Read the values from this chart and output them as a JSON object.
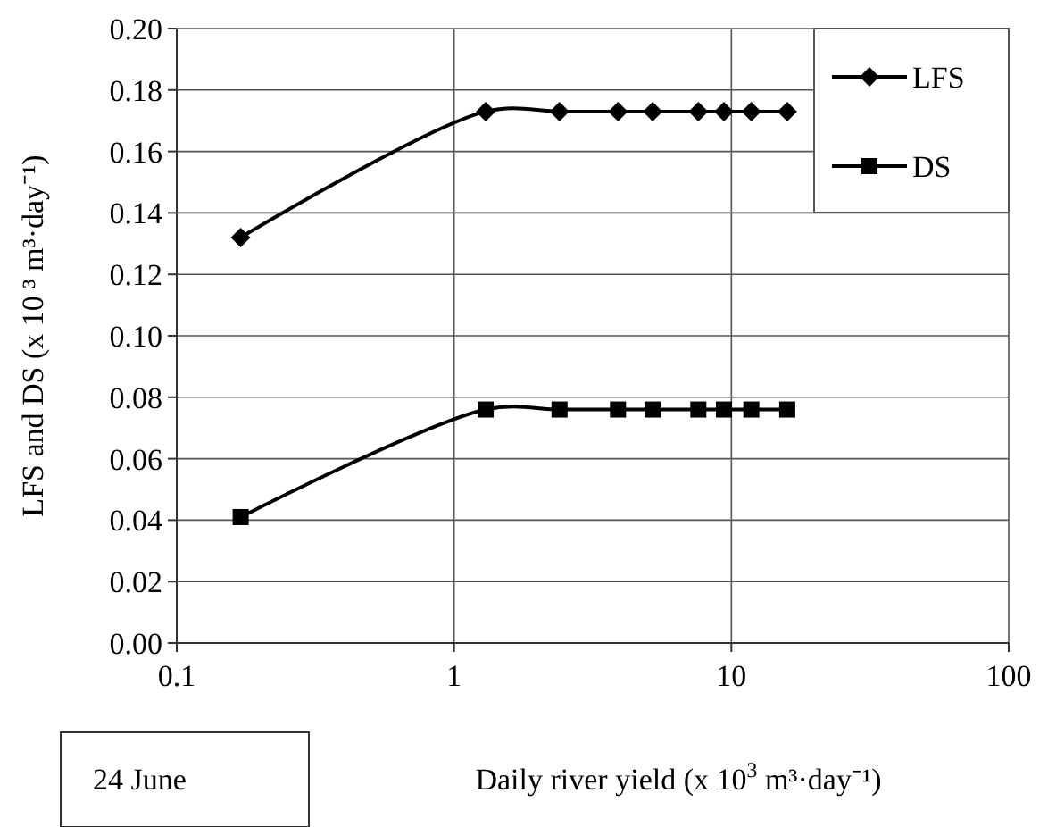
{
  "chart_data": {
    "type": "line",
    "xlabel": "Daily river yield  (x 10$^{3}$ m³·day⁻¹)",
    "ylabel": "LFS and DS (x 10 ³ m³·day⁻¹)",
    "annotations": [
      "24 June"
    ],
    "x": [
      0.17,
      1.3,
      2.4,
      3.9,
      5.2,
      7.6,
      9.4,
      11.8,
      15.9
    ],
    "series": [
      {
        "name": "LFS",
        "color": "#000000",
        "marker": "diamond",
        "values": [
          0.132,
          0.173,
          0.173,
          0.173,
          0.173,
          0.173,
          0.173,
          0.173,
          0.173
        ]
      },
      {
        "name": "DS",
        "color": "#000000",
        "marker": "square",
        "values": [
          0.041,
          0.076,
          0.076,
          0.076,
          0.076,
          0.076,
          0.076,
          0.076,
          0.076
        ]
      }
    ],
    "log": "x",
    "xlim": [
      0.1,
      100
    ],
    "xticks": [
      0.1,
      1,
      10,
      100
    ],
    "ylim": [
      0,
      0.2
    ],
    "yticks": [
      {
        "value": 0,
        "label": "0.00"
      },
      {
        "value": 0.02,
        "label": "0.02"
      },
      {
        "value": 0.04,
        "label": "0.04"
      },
      {
        "value": 0.06,
        "label": "0.06"
      },
      {
        "value": 0.08,
        "label": "0.08"
      },
      {
        "value": 0.1,
        "label": "0.10"
      },
      {
        "value": 0.12,
        "label": "0.12"
      },
      {
        "value": 0.14,
        "label": "0.14"
      },
      {
        "value": 0.16,
        "label": "0.16"
      },
      {
        "value": 0.18,
        "label": "0.18"
      },
      {
        "value": 0.2,
        "label": "0.20"
      }
    ],
    "grid": true,
    "legend": "top right",
    "line_style": "solid"
  }
}
